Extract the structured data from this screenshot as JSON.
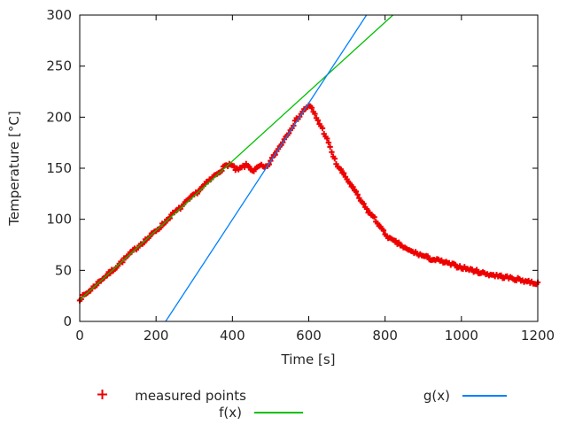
{
  "chart_data": {
    "type": "scatter",
    "title": "",
    "xlabel": "Time [s]",
    "ylabel": "Temperature [°C]",
    "xlim": [
      0,
      1200
    ],
    "ylim": [
      0,
      300
    ],
    "xticks": [
      0,
      200,
      400,
      600,
      800,
      1000,
      1200
    ],
    "yticks": [
      0,
      50,
      100,
      150,
      200,
      250,
      300
    ],
    "grid": false,
    "tick_style": "inward-mirrored",
    "axis_color": "#000000",
    "tick_label_color": "#262626",
    "legend_position": "below-plot",
    "series": [
      {
        "name": "measured points",
        "type": "points",
        "marker": "plus",
        "color": "#ee0000",
        "sample_interval_s": 4,
        "noise_amplitude_C": 1.6,
        "anchors": [
          [
            0,
            22
          ],
          [
            20,
            28
          ],
          [
            40,
            35
          ],
          [
            60,
            42
          ],
          [
            80,
            48
          ],
          [
            100,
            55
          ],
          [
            120,
            62
          ],
          [
            140,
            69
          ],
          [
            160,
            76
          ],
          [
            180,
            82
          ],
          [
            200,
            89
          ],
          [
            220,
            96
          ],
          [
            240,
            104
          ],
          [
            260,
            110
          ],
          [
            280,
            117
          ],
          [
            300,
            124
          ],
          [
            320,
            131
          ],
          [
            340,
            138
          ],
          [
            360,
            145
          ],
          [
            375,
            150
          ],
          [
            385,
            153
          ],
          [
            392,
            154
          ],
          [
            400,
            152
          ],
          [
            408,
            149
          ],
          [
            415,
            148
          ],
          [
            422,
            150
          ],
          [
            430,
            152
          ],
          [
            438,
            153
          ],
          [
            445,
            151
          ],
          [
            452,
            148
          ],
          [
            458,
            148
          ],
          [
            465,
            150
          ],
          [
            472,
            152
          ],
          [
            478,
            152
          ],
          [
            485,
            150
          ],
          [
            490,
            151
          ],
          [
            495,
            154
          ],
          [
            505,
            160
          ],
          [
            515,
            166
          ],
          [
            525,
            172
          ],
          [
            535,
            178
          ],
          [
            545,
            184
          ],
          [
            555,
            190
          ],
          [
            565,
            196
          ],
          [
            575,
            201
          ],
          [
            585,
            206
          ],
          [
            595,
            210
          ],
          [
            601,
            211
          ],
          [
            607,
            209
          ],
          [
            615,
            203
          ],
          [
            625,
            196
          ],
          [
            635,
            189
          ],
          [
            645,
            181
          ],
          [
            652,
            174
          ],
          [
            660,
            166
          ],
          [
            668,
            158
          ],
          [
            676,
            152
          ],
          [
            684,
            148
          ],
          [
            695,
            142
          ],
          [
            710,
            134
          ],
          [
            725,
            125
          ],
          [
            740,
            116
          ],
          [
            755,
            108
          ],
          [
            765,
            104
          ],
          [
            772,
            101
          ],
          [
            776,
            98
          ],
          [
            782,
            96
          ],
          [
            790,
            91
          ],
          [
            797,
            87
          ],
          [
            805,
            84
          ],
          [
            815,
            80
          ],
          [
            825,
            78
          ],
          [
            840,
            75
          ],
          [
            858,
            70
          ],
          [
            880,
            67
          ],
          [
            900,
            64
          ],
          [
            922,
            61
          ],
          [
            945,
            59
          ],
          [
            970,
            56
          ],
          [
            1000,
            53
          ],
          [
            1030,
            50
          ],
          [
            1060,
            47
          ],
          [
            1090,
            45
          ],
          [
            1120,
            43
          ],
          [
            1150,
            41
          ],
          [
            1175,
            39
          ],
          [
            1200,
            37
          ]
        ]
      },
      {
        "name": "f(x)",
        "type": "line",
        "color": "#00c000",
        "slope": 0.34,
        "intercept": 21
      },
      {
        "name": "g(x)",
        "type": "line",
        "color": "#0080ff",
        "slope": 0.57,
        "intercept": -128.25
      }
    ],
    "legend": [
      {
        "label": "measured points",
        "swatch": "plus",
        "color": "#ee0000"
      },
      {
        "label": "f(x)",
        "swatch": "line",
        "color": "#00c000"
      },
      {
        "label": "g(x)",
        "swatch": "line",
        "color": "#0080ff"
      }
    ]
  }
}
